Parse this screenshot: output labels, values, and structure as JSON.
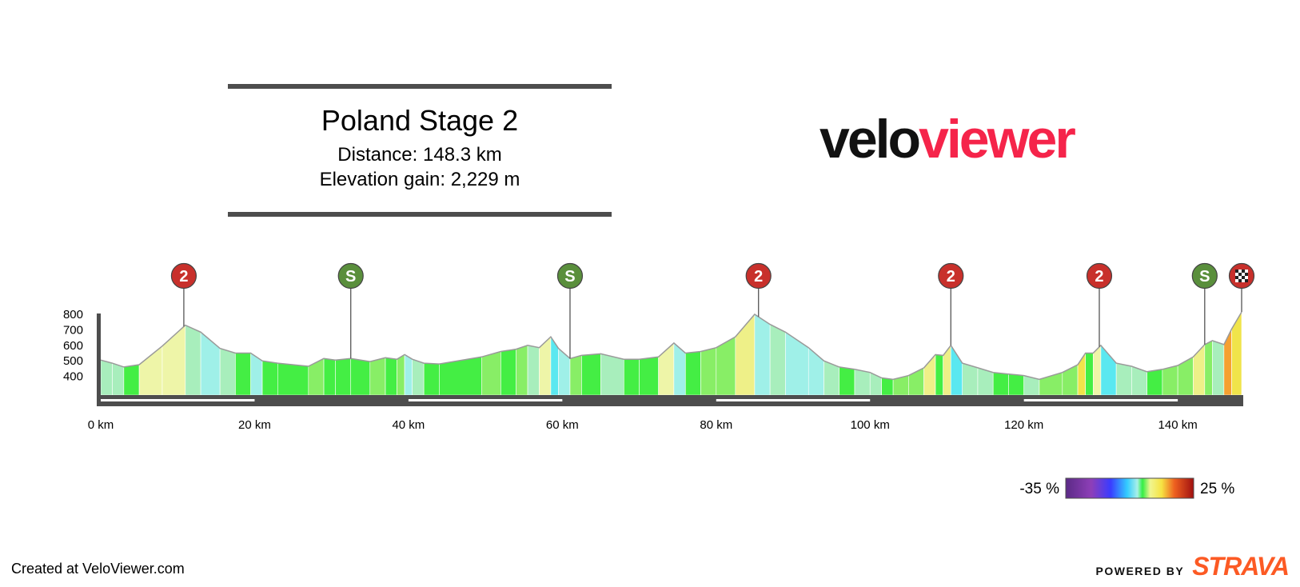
{
  "header": {
    "stage_name": "Poland Stage 2",
    "distance_label": "Distance: 148.3 km",
    "elevation_label": "Elevation gain: 2,229 m"
  },
  "logo": {
    "part1": "velo",
    "part2": "viewer"
  },
  "footer": {
    "created_at": "Created at VeloViewer.com",
    "powered_by": "POWERED BY",
    "strava": "STRAVA"
  },
  "colors": {
    "brand": "#f5244a",
    "strava": "#fc5a24",
    "axis": "#4d4d4d",
    "climb_marker": "#c8302b",
    "sprint_marker": "#5a8f3c"
  },
  "chart_data": {
    "type": "area",
    "title": "Poland Stage 2",
    "xlabel": "",
    "ylabel": "",
    "x_unit": "km",
    "xlim": [
      0,
      148.3
    ],
    "ylim": [
      300,
      800
    ],
    "x_ticks": [
      0,
      20,
      40,
      60,
      80,
      100,
      120,
      140
    ],
    "x_tick_labels": [
      "0 km",
      "20 km",
      "40 km",
      "60 km",
      "80 km",
      "100 km",
      "120 km",
      "140 km"
    ],
    "y_ticks": [
      400,
      500,
      600,
      700,
      800
    ],
    "y_tick_labels": [
      "400",
      "500",
      "600",
      "700",
      "800"
    ],
    "profile": [
      {
        "x": 0,
        "y": 500
      },
      {
        "x": 1.5,
        "y": 480
      },
      {
        "x": 3,
        "y": 455
      },
      {
        "x": 5,
        "y": 470
      },
      {
        "x": 8,
        "y": 590
      },
      {
        "x": 11,
        "y": 725
      },
      {
        "x": 13,
        "y": 680
      },
      {
        "x": 15.5,
        "y": 575
      },
      {
        "x": 17.5,
        "y": 545
      },
      {
        "x": 19.5,
        "y": 545
      },
      {
        "x": 21,
        "y": 495
      },
      {
        "x": 23,
        "y": 480
      },
      {
        "x": 27,
        "y": 460
      },
      {
        "x": 29,
        "y": 510
      },
      {
        "x": 30.5,
        "y": 500
      },
      {
        "x": 32.5,
        "y": 510
      },
      {
        "x": 35,
        "y": 490
      },
      {
        "x": 37,
        "y": 515
      },
      {
        "x": 38.5,
        "y": 505
      },
      {
        "x": 39.5,
        "y": 535
      },
      {
        "x": 40.5,
        "y": 505
      },
      {
        "x": 42,
        "y": 480
      },
      {
        "x": 44,
        "y": 475
      },
      {
        "x": 49.5,
        "y": 520
      },
      {
        "x": 52,
        "y": 555
      },
      {
        "x": 54,
        "y": 570
      },
      {
        "x": 55.5,
        "y": 595
      },
      {
        "x": 57,
        "y": 580
      },
      {
        "x": 58.5,
        "y": 650
      },
      {
        "x": 59.5,
        "y": 575
      },
      {
        "x": 61,
        "y": 510
      },
      {
        "x": 62.5,
        "y": 530
      },
      {
        "x": 65,
        "y": 540
      },
      {
        "x": 68,
        "y": 505
      },
      {
        "x": 70,
        "y": 505
      },
      {
        "x": 72.5,
        "y": 520
      },
      {
        "x": 74.5,
        "y": 610
      },
      {
        "x": 76,
        "y": 545
      },
      {
        "x": 78,
        "y": 555
      },
      {
        "x": 80,
        "y": 580
      },
      {
        "x": 82.5,
        "y": 650
      },
      {
        "x": 85,
        "y": 795
      },
      {
        "x": 87,
        "y": 730
      },
      {
        "x": 89,
        "y": 680
      },
      {
        "x": 92,
        "y": 580
      },
      {
        "x": 94,
        "y": 495
      },
      {
        "x": 96,
        "y": 455
      },
      {
        "x": 98,
        "y": 440
      },
      {
        "x": 100,
        "y": 420
      },
      {
        "x": 101.5,
        "y": 385
      },
      {
        "x": 103,
        "y": 375
      },
      {
        "x": 105,
        "y": 400
      },
      {
        "x": 107,
        "y": 450
      },
      {
        "x": 108.5,
        "y": 535
      },
      {
        "x": 109.5,
        "y": 530
      },
      {
        "x": 110.5,
        "y": 595
      },
      {
        "x": 112,
        "y": 480
      },
      {
        "x": 114,
        "y": 450
      },
      {
        "x": 116,
        "y": 420
      },
      {
        "x": 118,
        "y": 410
      },
      {
        "x": 120,
        "y": 400
      },
      {
        "x": 122,
        "y": 375
      },
      {
        "x": 125,
        "y": 420
      },
      {
        "x": 127,
        "y": 470
      },
      {
        "x": 128,
        "y": 545
      },
      {
        "x": 129,
        "y": 545
      },
      {
        "x": 130,
        "y": 595
      },
      {
        "x": 132,
        "y": 480
      },
      {
        "x": 134,
        "y": 460
      },
      {
        "x": 136,
        "y": 425
      },
      {
        "x": 138,
        "y": 440
      },
      {
        "x": 140,
        "y": 465
      },
      {
        "x": 142,
        "y": 520
      },
      {
        "x": 143.5,
        "y": 600
      },
      {
        "x": 144.5,
        "y": 625
      },
      {
        "x": 146,
        "y": 600
      },
      {
        "x": 147,
        "y": 700
      },
      {
        "x": 148.3,
        "y": 810
      }
    ],
    "markers": [
      {
        "type": "climb",
        "label": "2",
        "km": 10.8
      },
      {
        "type": "sprint",
        "label": "S",
        "km": 32.5
      },
      {
        "type": "sprint",
        "label": "S",
        "km": 61
      },
      {
        "type": "climb",
        "label": "2",
        "km": 85.5
      },
      {
        "type": "climb",
        "label": "2",
        "km": 110.5
      },
      {
        "type": "climb",
        "label": "2",
        "km": 129.8
      },
      {
        "type": "sprint",
        "label": "S",
        "km": 143.5
      },
      {
        "type": "finish",
        "label": "",
        "km": 148.3
      }
    ],
    "gradient_legend": {
      "min_label": "-35 %",
      "max_label": "25 %",
      "min": -35,
      "max": 25
    }
  }
}
